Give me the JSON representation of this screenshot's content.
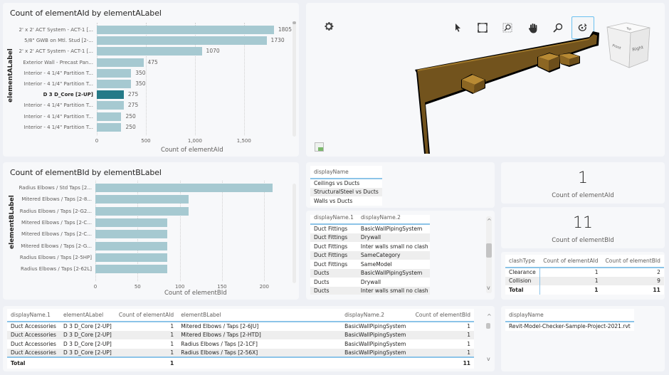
{
  "chart_data": [
    {
      "type": "bar",
      "orientation": "horizontal",
      "title": "Count of elementAId by elementALabel",
      "xlabel": "Count of elementAId",
      "ylabel": "elementALabel",
      "xlim": [
        0,
        1900
      ],
      "xticks": [
        "0",
        "500",
        "1,000",
        "1,500"
      ],
      "xtick_values": [
        0,
        500,
        1000,
        1500
      ],
      "grid": true,
      "categories": [
        "2' x 2' ACT System - ACT-1 [...",
        "5/8\" GWB on Mtl. Stud [2-...",
        "2' x 2' ACT System - ACT-1 [...",
        "Exterior Wall - Precast Pan...",
        "Interior - 4 1/4\" Partition T...",
        "Interior - 4 1/4\" Partition T...",
        "D 3 D_Core [2-UP]",
        "Interior - 4 1/4\" Partition T...",
        "Interior - 4 1/4\" Partition T...",
        "Interior - 4 1/4\" Partition T..."
      ],
      "values": [
        1805,
        1730,
        1070,
        475,
        350,
        350,
        275,
        275,
        250,
        250
      ],
      "selected_index": 6,
      "colors": {
        "bar": "#a6c9d1",
        "selected": "#247a88"
      }
    },
    {
      "type": "bar",
      "orientation": "horizontal",
      "title": "Count of elementBId by elementBLabel",
      "xlabel": "Count of elementBId",
      "ylabel": "elementBLabel",
      "xlim": [
        0,
        220
      ],
      "xticks": [
        "0",
        "50",
        "100",
        "150",
        "200"
      ],
      "xtick_values": [
        0,
        50,
        100,
        150,
        200
      ],
      "grid": true,
      "categories": [
        "Radius Elbows / Std Taps [2...",
        "Mitered Elbows / Taps [2-8...",
        "Radius Elbows / Taps [2-G2...",
        "Mitered Elbows / Taps [2-C...",
        "Mitered Elbows / Taps [2-C...",
        "Mitered Elbows / Taps [2-G...",
        "Radius Elbows / Taps [2-5HP]",
        "Radius Elbows / Taps [2-62L]"
      ],
      "values": [
        210,
        110,
        110,
        85,
        85,
        85,
        85,
        85
      ],
      "colors": {
        "bar": "#a6c9d1"
      }
    }
  ],
  "viewer": {
    "tools": [
      "select-icon",
      "fit-view-icon",
      "zoom-window-icon",
      "pan-icon",
      "zoom-icon",
      "orbit-icon"
    ],
    "active_tool": "orbit-icon",
    "viewcube": {
      "top": "Top",
      "front": "Front",
      "right": "Right"
    },
    "model_color": "#7a5a1e"
  },
  "slicer_display": {
    "header": "displayName",
    "rows": [
      "Ceilings vs Ducts",
      "StructuralSteel vs Ducts",
      "Walls vs Ducts"
    ]
  },
  "pair_table": {
    "headers": [
      "displayName.1",
      "displayName.2"
    ],
    "rows": [
      [
        "Duct Fittings",
        "BasicWallPipingSystem"
      ],
      [
        "Duct Fittings",
        "Drywall"
      ],
      [
        "Duct Fittings",
        "Inter walls small no clash"
      ],
      [
        "Duct Fittings",
        "SameCategory"
      ],
      [
        "Duct Fittings",
        "SameModel"
      ],
      [
        "Ducts",
        "BasicWallPipingSystem"
      ],
      [
        "Ducts",
        "Drywall"
      ],
      [
        "Ducts",
        "Inter walls small no clash"
      ]
    ]
  },
  "kpi_a": {
    "value": "1",
    "label": "Count of elementAId"
  },
  "kpi_b": {
    "value": "11",
    "label": "Count of elementBId"
  },
  "clash_table": {
    "headers": [
      "clashType",
      "Count of elementAId",
      "Count of elementBId"
    ],
    "rows": [
      [
        "Clearance",
        "1",
        "2"
      ],
      [
        "Collision",
        "1",
        "9"
      ]
    ],
    "total": [
      "Total",
      "1",
      "11"
    ]
  },
  "detail_table": {
    "headers": [
      "displayName.1",
      "elementALabel",
      "Count of elementAId",
      "elementBLabel",
      "displayName.2",
      "Count of elementBId"
    ],
    "rows": [
      [
        "Duct Accessories",
        "D 3 D_Core [2-UP]",
        "1",
        "Mitered Elbows / Taps [2-6JU]",
        "BasicWallPipingSystem",
        "1"
      ],
      [
        "Duct Accessories",
        "D 3 D_Core [2-UP]",
        "1",
        "Mitered Elbows / Taps [2-HTD]",
        "BasicWallPipingSystem",
        "1"
      ],
      [
        "Duct Accessories",
        "D 3 D_Core [2-UP]",
        "1",
        "Radius Elbows / Taps [2-1CF]",
        "BasicWallPipingSystem",
        "1"
      ],
      [
        "Duct Accessories",
        "D 3 D_Core [2-UP]",
        "1",
        "Radius Elbows / Taps [2-56X]",
        "BasicWallPipingSystem",
        "1"
      ]
    ],
    "total": [
      "Total",
      "",
      "1",
      "",
      "",
      "11"
    ]
  },
  "file_table": {
    "header": "displayName",
    "rows": [
      "Revit-Model-Checker-Sample-Project-2021.rvt"
    ]
  },
  "scroll_arrows": {
    "up": "^",
    "down": "v"
  }
}
